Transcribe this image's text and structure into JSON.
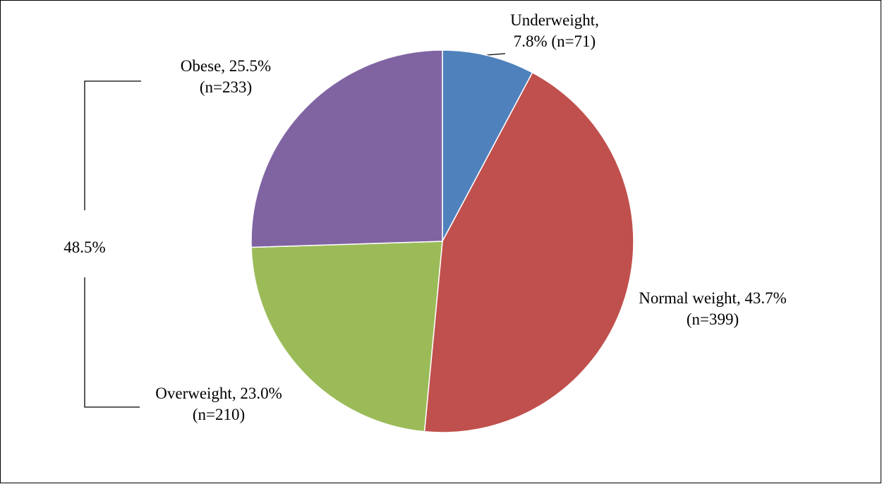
{
  "chart_data": {
    "type": "pie",
    "values": [
      7.8,
      43.7,
      23.0,
      25.5
    ],
    "value_labels": [
      "Underweight, 7.8% (n=71)",
      "Normal weight, 43.7% (n=399)",
      "Overweight, 23.0% (n=210)",
      "Obese, 25.5% (n=233)"
    ],
    "colors": [
      "#4f81bd",
      "#c0504d",
      "#9bbb59",
      "#8064a2"
    ],
    "annotations": [
      {
        "text": "48.5%"
      }
    ]
  }
}
